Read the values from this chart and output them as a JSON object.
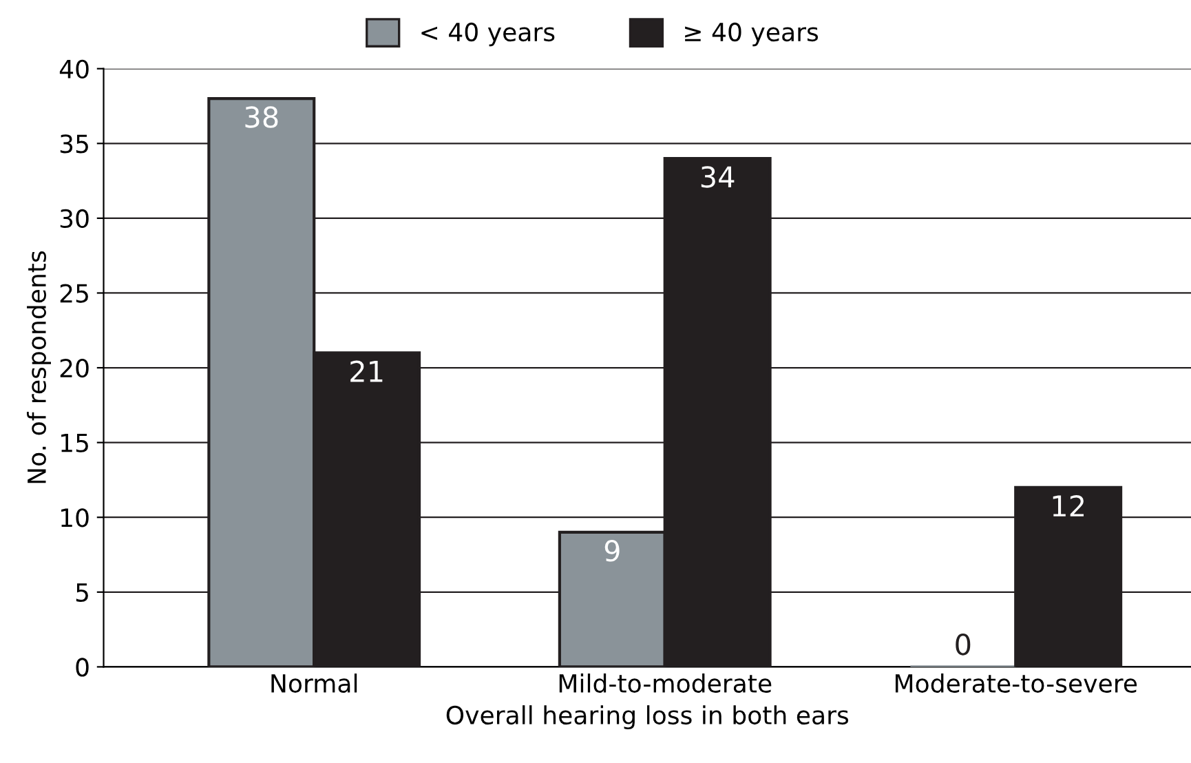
{
  "chart_data": {
    "type": "bar",
    "xlabel": "Overall hearing loss in both ears",
    "ylabel": "No. of respondents",
    "categories": [
      "Normal",
      "Mild-to-moderate",
      "Moderate-to-severe"
    ],
    "series": [
      {
        "name": "< 40 years",
        "color": "#8a9399",
        "values": [
          38,
          9,
          0
        ]
      },
      {
        "name": "≥ 40 years",
        "color": "#231f20",
        "values": [
          21,
          34,
          12
        ]
      }
    ],
    "ylim": [
      0,
      40
    ],
    "yticks": [
      0,
      5,
      10,
      15,
      20,
      25,
      30,
      35,
      40
    ],
    "grid": "y",
    "legend": "top",
    "data_labels": true
  }
}
